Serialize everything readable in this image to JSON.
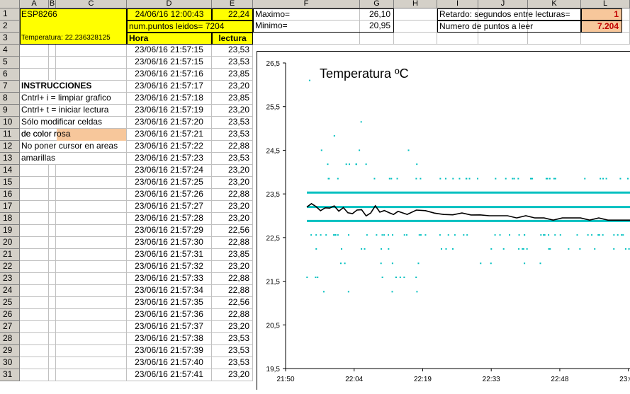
{
  "columns": [
    "A",
    "B",
    "C",
    "D",
    "E",
    "F",
    "G",
    "H",
    "I",
    "J",
    "K",
    "L"
  ],
  "rows_visible": [
    "1",
    "2",
    "3",
    "4",
    "5",
    "6",
    "7",
    "8",
    "9",
    "10",
    "11",
    "12",
    "13",
    "14",
    "15",
    "16",
    "17",
    "18",
    "19",
    "20",
    "21",
    "22",
    "23",
    "24",
    "25",
    "26",
    "27",
    "28",
    "29",
    "30",
    "31"
  ],
  "header_block": {
    "device": "ESP8266",
    "temperature_text": "Temperatura: 22.236328125",
    "datetime": "24/06/16 12:00:43",
    "current_value": "22,24",
    "points_read": "num.puntos leidos= 7204",
    "col_hora": "Hora",
    "col_lectura": "lectura"
  },
  "stats": {
    "max_label": "Maximo=",
    "max_value": "26,10",
    "min_label": "Minimo=",
    "min_value": "20,95"
  },
  "settings": {
    "delay_label": "Retardo: segundos entre lecturas=",
    "delay_value": "1",
    "points_label": "Numero de puntos a leer",
    "points_value": "7.204"
  },
  "instructions": [
    "INSTRUCCIONES",
    " Cntrl+ i = limpiar grafico",
    "Cntrl+ t = iniciar lectura",
    "Sólo modificar celdas",
    "de color rosa",
    "No poner cursor en areas",
    "amarillas"
  ],
  "readings": [
    {
      "time": "23/06/16 21:57:15",
      "value": "23,53"
    },
    {
      "time": "23/06/16 21:57:15",
      "value": "23,53"
    },
    {
      "time": "23/06/16 21:57:16",
      "value": "23,85"
    },
    {
      "time": "23/06/16 21:57:17",
      "value": "23,20"
    },
    {
      "time": "23/06/16 21:57:18",
      "value": "23,85"
    },
    {
      "time": "23/06/16 21:57:19",
      "value": "23,20"
    },
    {
      "time": "23/06/16 21:57:20",
      "value": "23,53"
    },
    {
      "time": "23/06/16 21:57:21",
      "value": "23,53"
    },
    {
      "time": "23/06/16 21:57:22",
      "value": "22,88"
    },
    {
      "time": "23/06/16 21:57:23",
      "value": "23,53"
    },
    {
      "time": "23/06/16 21:57:24",
      "value": "23,20"
    },
    {
      "time": "23/06/16 21:57:25",
      "value": "23,20"
    },
    {
      "time": "23/06/16 21:57:26",
      "value": "22,88"
    },
    {
      "time": "23/06/16 21:57:27",
      "value": "23,20"
    },
    {
      "time": "23/06/16 21:57:28",
      "value": "23,20"
    },
    {
      "time": "23/06/16 21:57:29",
      "value": "22,56"
    },
    {
      "time": "23/06/16 21:57:30",
      "value": "22,88"
    },
    {
      "time": "23/06/16 21:57:31",
      "value": "23,85"
    },
    {
      "time": "23/06/16 21:57:32",
      "value": "23,20"
    },
    {
      "time": "23/06/16 21:57:33",
      "value": "22,88"
    },
    {
      "time": "23/06/16 21:57:34",
      "value": "22,88"
    },
    {
      "time": "23/06/16 21:57:35",
      "value": "22,56"
    },
    {
      "time": "23/06/16 21:57:36",
      "value": "22,88"
    },
    {
      "time": "23/06/16 21:57:37",
      "value": "23,20"
    },
    {
      "time": "23/06/16 21:57:38",
      "value": "23,53"
    },
    {
      "time": "23/06/16 21:57:39",
      "value": "23,53"
    },
    {
      "time": "23/06/16 21:57:40",
      "value": "23,53"
    },
    {
      "time": "23/06/16 21:57:41",
      "value": "23,20"
    }
  ],
  "chart_data": {
    "type": "line",
    "title": "Temperatura ºC",
    "xlabel": "",
    "ylabel": "",
    "ylim": [
      19.5,
      26.5
    ],
    "y_ticks": [
      "26,5",
      "25,5",
      "24,5",
      "23,5",
      "22,5",
      "21,5",
      "20,5",
      "19,5"
    ],
    "x_tick_labels": [
      "21:50",
      "22:04",
      "22:19",
      "22:33",
      "22:48",
      "23:02"
    ],
    "grid": false,
    "legend": "none",
    "colors": {
      "line": "#000000",
      "points": "#00c0c0"
    },
    "series": [
      {
        "values_x_minutes": [
          0,
          1,
          2,
          3,
          4,
          5,
          6,
          7,
          8,
          9,
          10,
          11,
          12,
          13,
          14,
          15,
          16,
          17,
          18,
          19,
          20,
          22,
          24,
          26,
          28,
          30,
          32,
          34,
          36,
          38,
          40,
          42,
          44,
          46,
          48,
          50,
          52,
          54,
          56,
          58,
          60,
          62,
          64,
          66,
          68,
          70,
          71
        ],
        "values": [
          23.2,
          23.3,
          23.25,
          23.1,
          23.2,
          23.15,
          23.2,
          23.1,
          23.15,
          23.1,
          23.05,
          23.1,
          23.1,
          23.0,
          23.1,
          23.2,
          23.05,
          23.1,
          23.1,
          23.05,
          23.1,
          23.05,
          23.1,
          23.1,
          23.05,
          23.05,
          23.0,
          23.05,
          23.0,
          23.05,
          23.0,
          23.0,
          23.0,
          22.95,
          23.0,
          22.95,
          22.95,
          22.9,
          22.95,
          22.95,
          22.95,
          22.9,
          22.95,
          22.9,
          22.9,
          22.9,
          22.9
        ]
      },
      {
        "quantized_levels": [
          23.53,
          23.2,
          22.88,
          22.56,
          23.85,
          22.24,
          21.91,
          21.59,
          21.26,
          24.18,
          24.5,
          24.83,
          25.15,
          25.47,
          20.95,
          26.1
        ]
      }
    ]
  }
}
